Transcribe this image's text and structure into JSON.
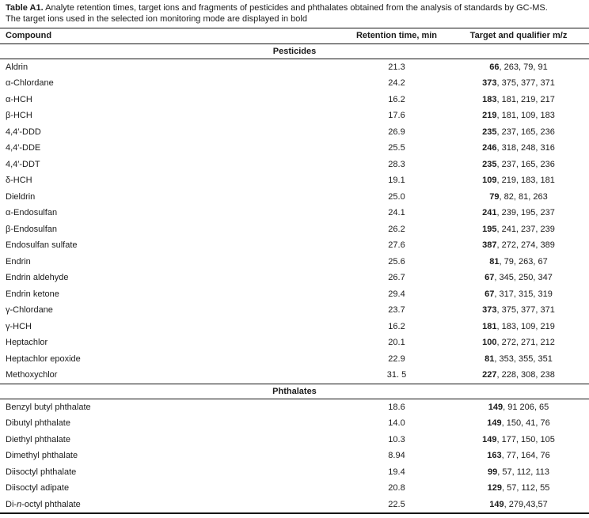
{
  "caption": {
    "label": "Table A1.",
    "text_line1": "Analyte retention times, target ions and fragments of pesticides and phthalates obtained from the analysis of standards by GC-MS.",
    "text_line2": "The target ions used in the selected ion monitoring mode are displayed in bold"
  },
  "colors": {
    "text": "#1b1b1b",
    "rule": "#151515",
    "background": "#ffffff"
  },
  "table": {
    "columns": [
      "Compound",
      "Retention time, min",
      "Target and qualifier m/z"
    ],
    "sections": [
      {
        "name": "Pesticides",
        "rows": [
          {
            "compound": "Aldrin",
            "retention_time": "21.3",
            "target_ion": "66",
            "qualifiers": "263, 79, 91"
          },
          {
            "compound": "α-Chlordane",
            "retention_time": "24.2",
            "target_ion": "373",
            "qualifiers": "375, 377, 371"
          },
          {
            "compound": "α-HCH",
            "retention_time": "16.2",
            "target_ion": "183",
            "qualifiers": "181, 219, 217"
          },
          {
            "compound": "β-HCH",
            "retention_time": "17.6",
            "target_ion": "219",
            "qualifiers": "181, 109, 183"
          },
          {
            "compound": "4,4′-DDD",
            "retention_time": "26.9",
            "target_ion": "235",
            "qualifiers": "237, 165, 236"
          },
          {
            "compound": "4,4′-DDE",
            "retention_time": "25.5",
            "target_ion": "246",
            "qualifiers": "318, 248, 316"
          },
          {
            "compound": "4,4′-DDT",
            "retention_time": "28.3",
            "target_ion": "235",
            "qualifiers": "237, 165, 236"
          },
          {
            "compound": "δ-HCH",
            "retention_time": "19.1",
            "target_ion": "109",
            "qualifiers": "219, 183, 181"
          },
          {
            "compound": "Dieldrin",
            "retention_time": "25.0",
            "target_ion": "79",
            "qualifiers": "82, 81, 263"
          },
          {
            "compound": "α-Endosulfan",
            "retention_time": "24.1",
            "target_ion": "241",
            "qualifiers": "239, 195, 237"
          },
          {
            "compound": "β-Endosulfan",
            "retention_time": "26.2",
            "target_ion": "195",
            "qualifiers": "241, 237, 239"
          },
          {
            "compound": "Endosulfan sulfate",
            "retention_time": "27.6",
            "target_ion": "387",
            "qualifiers": "272, 274, 389"
          },
          {
            "compound": "Endrin",
            "retention_time": "25.6",
            "target_ion": "81",
            "qualifiers": "79, 263, 67"
          },
          {
            "compound": "Endrin aldehyde",
            "retention_time": "26.7",
            "target_ion": "67",
            "qualifiers": "345, 250, 347"
          },
          {
            "compound": "Endrin ketone",
            "retention_time": "29.4",
            "target_ion": "67",
            "qualifiers": "317, 315, 319"
          },
          {
            "compound": "γ-Chlordane",
            "retention_time": "23.7",
            "target_ion": "373",
            "qualifiers": "375, 377, 371"
          },
          {
            "compound": "γ-HCH",
            "retention_time": "16.2",
            "target_ion": "181",
            "qualifiers": "183, 109, 219"
          },
          {
            "compound": "Heptachlor",
            "retention_time": "20.1",
            "target_ion": "100",
            "qualifiers": "272, 271, 212"
          },
          {
            "compound": "Heptachlor epoxide",
            "retention_time": "22.9",
            "target_ion": "81",
            "qualifiers": "353, 355, 351"
          },
          {
            "compound": "Methoxychlor",
            "retention_time": "31. 5",
            "target_ion": "227",
            "qualifiers": "228, 308, 238"
          }
        ]
      },
      {
        "name": "Phthalates",
        "rows": [
          {
            "compound": "Benzyl butyl phthalate",
            "retention_time": "18.6",
            "target_ion": "149",
            "qualifiers": "91 206, 65"
          },
          {
            "compound": "Dibutyl phthalate",
            "retention_time": "14.0",
            "target_ion": "149",
            "qualifiers": "150, 41, 76"
          },
          {
            "compound": "Diethyl phthalate",
            "retention_time": "10.3",
            "target_ion": "149",
            "qualifiers": "177, 150, 105"
          },
          {
            "compound": "Dimethyl phthalate",
            "retention_time": "8.94",
            "target_ion": "163",
            "qualifiers": "77, 164, 76"
          },
          {
            "compound": "Diisoctyl phthalate",
            "retention_time": "19.4",
            "target_ion": "99",
            "qualifiers": "57, 112, 113"
          },
          {
            "compound": "Diisoctyl adipate",
            "retention_time": "20.8",
            "target_ion": "129",
            "qualifiers": "57, 112, 55"
          },
          {
            "compound": "Di-n-octyl phthalate",
            "compound_parts": [
              [
                "Di-",
                false
              ],
              [
                "n",
                true
              ],
              [
                "-octyl phthalate",
                false
              ]
            ],
            "retention_time": "22.5",
            "target_ion": "149",
            "qualifiers": "279,43,57"
          }
        ]
      }
    ]
  }
}
